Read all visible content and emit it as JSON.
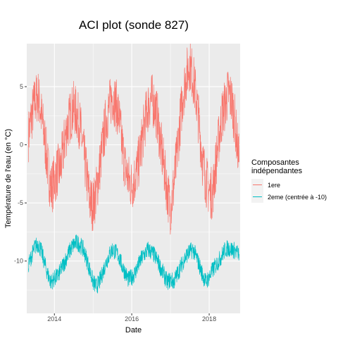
{
  "chart_data": {
    "type": "line",
    "title": "ACI plot (sonde 827)",
    "xlabel": "Date",
    "ylabel": "Température de l'eau (en °C)",
    "x_range": [
      "2013-04-15",
      "2018-10-20"
    ],
    "ylim": [
      -14.5,
      8.7
    ],
    "x_ticks": [
      "2014-01-01",
      "2016-01-01",
      "2018-01-01"
    ],
    "x_tick_labels": [
      "2014",
      "2016",
      "2018"
    ],
    "y_ticks": [
      -10,
      -5,
      0,
      5
    ],
    "y_tick_labels": [
      "-10",
      "-5",
      "0",
      "5"
    ],
    "grid": true,
    "legend": {
      "title_lines": [
        "Composantes",
        "indépendantes"
      ],
      "position": "right"
    },
    "series": [
      {
        "name": "1ere",
        "color": "#F8766D",
        "points": [
          [
            "2013-05-01",
            0.8
          ],
          [
            "2013-06-01",
            2.5
          ],
          [
            "2013-07-01",
            3.8
          ],
          [
            "2013-08-01",
            4.2
          ],
          [
            "2013-09-01",
            2.5
          ],
          [
            "2013-10-01",
            0.5
          ],
          [
            "2013-11-01",
            -2.0
          ],
          [
            "2013-12-01",
            -3.8
          ],
          [
            "2014-01-01",
            -3.0
          ],
          [
            "2014-02-01",
            -2.2
          ],
          [
            "2014-03-01",
            -2.0
          ],
          [
            "2014-04-01",
            0.0
          ],
          [
            "2014-05-01",
            1.5
          ],
          [
            "2014-06-01",
            2.5
          ],
          [
            "2014-07-01",
            3.2
          ],
          [
            "2014-08-01",
            2.6
          ],
          [
            "2014-09-01",
            1.6
          ],
          [
            "2014-10-01",
            -0.5
          ],
          [
            "2014-11-01",
            -2.6
          ],
          [
            "2014-12-01",
            -4.8
          ],
          [
            "2015-01-01",
            -5.2
          ],
          [
            "2015-02-01",
            -4.0
          ],
          [
            "2015-03-01",
            -2.2
          ],
          [
            "2015-04-01",
            0.0
          ],
          [
            "2015-05-01",
            2.0
          ],
          [
            "2015-06-01",
            3.2
          ],
          [
            "2015-07-01",
            4.2
          ],
          [
            "2015-08-01",
            3.6
          ],
          [
            "2015-09-01",
            2.5
          ],
          [
            "2015-10-01",
            0.0
          ],
          [
            "2015-11-01",
            -2.0
          ],
          [
            "2015-12-01",
            -3.0
          ],
          [
            "2016-01-01",
            -3.5
          ],
          [
            "2016-02-01",
            -2.8
          ],
          [
            "2016-03-01",
            -1.8
          ],
          [
            "2016-04-01",
            0.0
          ],
          [
            "2016-05-01",
            1.8
          ],
          [
            "2016-06-01",
            3.2
          ],
          [
            "2016-07-01",
            4.0
          ],
          [
            "2016-08-01",
            3.5
          ],
          [
            "2016-09-01",
            2.2
          ],
          [
            "2016-10-01",
            0.0
          ],
          [
            "2016-11-01",
            -2.0
          ],
          [
            "2016-12-01",
            -4.0
          ],
          [
            "2017-01-01",
            -5.5
          ],
          [
            "2017-02-01",
            -3.5
          ],
          [
            "2017-03-01",
            -1.0
          ],
          [
            "2017-04-01",
            2.0
          ],
          [
            "2017-05-01",
            4.5
          ],
          [
            "2017-06-01",
            6.0
          ],
          [
            "2017-07-01",
            7.0
          ],
          [
            "2017-08-01",
            5.8
          ],
          [
            "2017-09-01",
            4.0
          ],
          [
            "2017-10-01",
            1.5
          ],
          [
            "2017-11-01",
            -1.5
          ],
          [
            "2017-12-01",
            -3.0
          ],
          [
            "2018-01-01",
            -4.0
          ],
          [
            "2018-02-01",
            -4.2
          ],
          [
            "2018-03-01",
            -2.0
          ],
          [
            "2018-04-01",
            0.5
          ],
          [
            "2018-05-01",
            2.5
          ],
          [
            "2018-06-01",
            3.5
          ],
          [
            "2018-07-01",
            4.5
          ],
          [
            "2018-08-01",
            3.8
          ],
          [
            "2018-09-01",
            2.0
          ],
          [
            "2018-10-10",
            -1.5
          ]
        ]
      },
      {
        "name": "2eme (centrée à -10)",
        "color": "#00BFC4",
        "points": [
          [
            "2013-05-01",
            -10.3
          ],
          [
            "2013-06-01",
            -9.5
          ],
          [
            "2013-07-01",
            -8.8
          ],
          [
            "2013-08-01",
            -8.5
          ],
          [
            "2013-09-01",
            -9.2
          ],
          [
            "2013-10-01",
            -10.2
          ],
          [
            "2013-11-01",
            -11.2
          ],
          [
            "2013-12-01",
            -11.8
          ],
          [
            "2014-01-01",
            -11.5
          ],
          [
            "2014-02-01",
            -11.3
          ],
          [
            "2014-03-01",
            -10.8
          ],
          [
            "2014-04-01",
            -10.2
          ],
          [
            "2014-05-01",
            -9.6
          ],
          [
            "2014-06-01",
            -9.0
          ],
          [
            "2014-07-01",
            -8.6
          ],
          [
            "2014-08-01",
            -8.4
          ],
          [
            "2014-09-01",
            -8.6
          ],
          [
            "2014-10-01",
            -9.0
          ],
          [
            "2014-11-01",
            -9.8
          ],
          [
            "2014-12-01",
            -10.8
          ],
          [
            "2015-01-01",
            -11.8
          ],
          [
            "2015-02-01",
            -12.2
          ],
          [
            "2015-03-01",
            -11.8
          ],
          [
            "2015-04-01",
            -11.0
          ],
          [
            "2015-05-01",
            -10.2
          ],
          [
            "2015-06-01",
            -9.5
          ],
          [
            "2015-07-01",
            -9.0
          ],
          [
            "2015-08-01",
            -9.2
          ],
          [
            "2015-09-01",
            -9.6
          ],
          [
            "2015-10-01",
            -10.4
          ],
          [
            "2015-11-01",
            -11.0
          ],
          [
            "2015-12-01",
            -11.6
          ],
          [
            "2016-01-01",
            -11.4
          ],
          [
            "2016-02-01",
            -11.0
          ],
          [
            "2016-03-01",
            -10.4
          ],
          [
            "2016-04-01",
            -9.8
          ],
          [
            "2016-05-01",
            -9.4
          ],
          [
            "2016-06-01",
            -9.0
          ],
          [
            "2016-07-01",
            -9.2
          ],
          [
            "2016-08-01",
            -9.5
          ],
          [
            "2016-09-01",
            -10.0
          ],
          [
            "2016-10-01",
            -10.6
          ],
          [
            "2016-11-01",
            -11.2
          ],
          [
            "2016-12-01",
            -11.8
          ],
          [
            "2017-01-01",
            -11.6
          ],
          [
            "2017-02-01",
            -11.8
          ],
          [
            "2017-03-01",
            -11.2
          ],
          [
            "2017-04-01",
            -10.6
          ],
          [
            "2017-05-01",
            -10.0
          ],
          [
            "2017-06-01",
            -9.5
          ],
          [
            "2017-07-01",
            -9.2
          ],
          [
            "2017-08-01",
            -9.0
          ],
          [
            "2017-09-01",
            -9.6
          ],
          [
            "2017-10-01",
            -10.4
          ],
          [
            "2017-11-01",
            -11.2
          ],
          [
            "2017-12-01",
            -11.8
          ],
          [
            "2018-01-01",
            -11.4
          ],
          [
            "2018-02-01",
            -10.8
          ],
          [
            "2018-03-01",
            -10.4
          ],
          [
            "2018-04-01",
            -10.0
          ],
          [
            "2018-05-01",
            -9.5
          ],
          [
            "2018-06-01",
            -9.0
          ],
          [
            "2018-07-01",
            -8.9
          ],
          [
            "2018-08-01",
            -9.0
          ],
          [
            "2018-09-01",
            -9.1
          ],
          [
            "2018-10-10",
            -9.4
          ]
        ]
      }
    ]
  }
}
